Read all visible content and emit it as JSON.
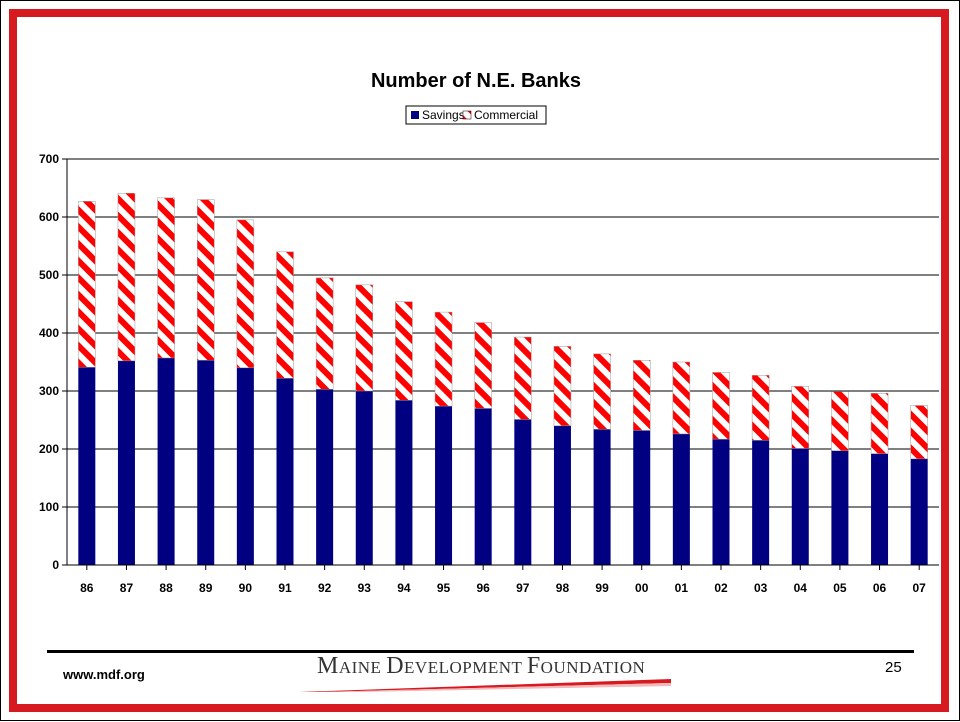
{
  "chart_data": {
    "type": "bar",
    "stacked": true,
    "title": "Number of N.E. Banks",
    "categories": [
      "86",
      "87",
      "88",
      "89",
      "90",
      "91",
      "92",
      "93",
      "94",
      "95",
      "96",
      "97",
      "98",
      "99",
      "00",
      "01",
      "02",
      "03",
      "04",
      "05",
      "06",
      "07"
    ],
    "series": [
      {
        "name": "Savings",
        "color": "#000080",
        "values": [
          341,
          352,
          357,
          353,
          340,
          322,
          303,
          300,
          284,
          274,
          270,
          251,
          240,
          234,
          232,
          226,
          217,
          215,
          201,
          197,
          192,
          183
        ]
      },
      {
        "name": "Commercial",
        "color": "#ff0000",
        "pattern": "diagonal-stripes",
        "values": [
          286,
          289,
          276,
          277,
          255,
          218,
          192,
          183,
          170,
          162,
          148,
          142,
          137,
          130,
          121,
          124,
          115,
          112,
          107,
          102,
          104,
          92
        ]
      }
    ],
    "ylim": [
      0,
      700
    ],
    "yticks": [
      0,
      100,
      200,
      300,
      400,
      500,
      600,
      700
    ],
    "grid": true,
    "legend_position": "top-center"
  },
  "footer": {
    "url": "www.mdf.org",
    "brand": "Maine Development Foundation",
    "page_number": "25"
  },
  "colors": {
    "frame": "#d71920",
    "savings": "#000080",
    "commercial": "#ff0000"
  }
}
